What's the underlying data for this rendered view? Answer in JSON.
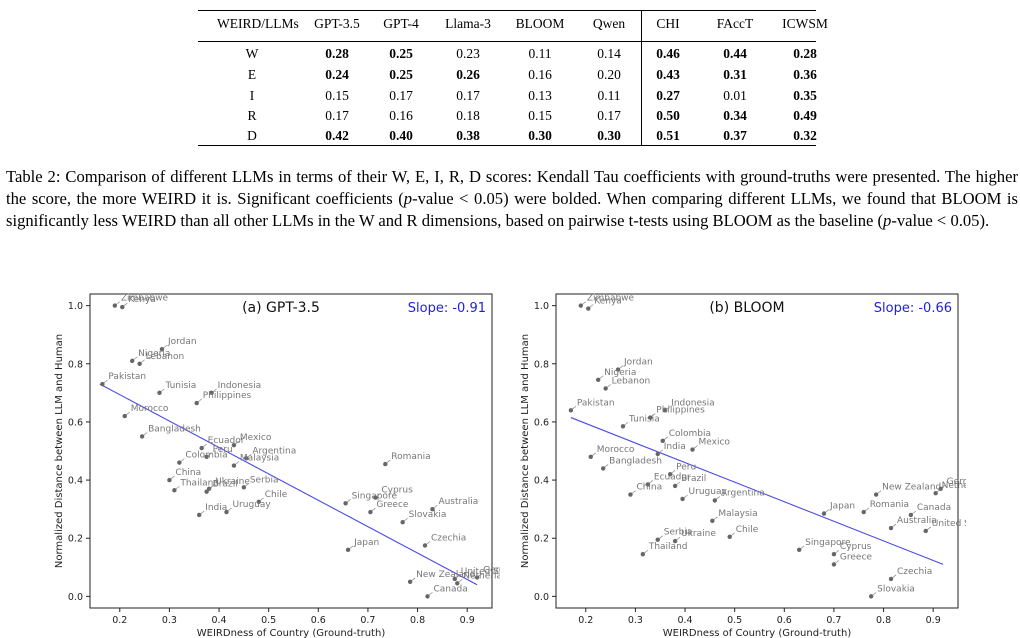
{
  "table": {
    "header": [
      "WEIRD/LLMs",
      "GPT-3.5",
      "GPT-4",
      "Llama-3",
      "BLOOM",
      "Qwen",
      "CHI",
      "FAccT",
      "ICWSM"
    ],
    "rows": [
      {
        "label": "W",
        "values": [
          "0.28",
          "0.25",
          "0.23",
          "0.11",
          "0.14",
          "0.46",
          "0.44",
          "0.28"
        ],
        "bold": [
          true,
          true,
          false,
          false,
          false,
          true,
          true,
          true
        ]
      },
      {
        "label": "E",
        "values": [
          "0.24",
          "0.25",
          "0.26",
          "0.16",
          "0.20",
          "0.43",
          "0.31",
          "0.36"
        ],
        "bold": [
          true,
          true,
          true,
          false,
          false,
          true,
          true,
          true
        ]
      },
      {
        "label": "I",
        "values": [
          "0.15",
          "0.17",
          "0.17",
          "0.13",
          "0.11",
          "0.27",
          "0.01",
          "0.35"
        ],
        "bold": [
          false,
          false,
          false,
          false,
          false,
          true,
          false,
          true
        ]
      },
      {
        "label": "R",
        "values": [
          "0.17",
          "0.16",
          "0.18",
          "0.15",
          "0.17",
          "0.50",
          "0.34",
          "0.49"
        ],
        "bold": [
          false,
          false,
          false,
          false,
          false,
          true,
          true,
          true
        ]
      },
      {
        "label": "D",
        "values": [
          "0.42",
          "0.40",
          "0.38",
          "0.30",
          "0.30",
          "0.51",
          "0.37",
          "0.32"
        ],
        "bold": [
          true,
          true,
          true,
          true,
          true,
          true,
          true,
          true
        ]
      }
    ]
  },
  "caption": {
    "label": "Table 2:",
    "text1": " Comparison of different LLMs in terms of their W, E, I, R, D scores: Kendall Tau coefficients with ground-truths were presented. The higher the score, the more WEIRD it is. Significant coefficients (",
    "p1": "p",
    "text2": "-value < 0.05) were bolded. When comparing different LLMs, we found that BLOOM is significantly less WEIRD than all other LLMs in the W and R dimensions, based on pairwise t-tests using BLOOM as the baseline (",
    "p2": "p",
    "text3": "-value < 0.05)."
  },
  "chart_data": [
    {
      "type": "scatter",
      "title": "(a) GPT-3.5",
      "annotation": "Slope: -0.91",
      "xlabel": "WEIRDness of Country (Ground-truth)",
      "ylabel": "Normalized Distance between LLM and Human",
      "xlim": [
        0.14,
        0.95
      ],
      "ylim": [
        -0.04,
        1.04
      ],
      "xticks": [
        "0.2",
        "0.3",
        "0.4",
        "0.5",
        "0.6",
        "0.7",
        "0.8",
        "0.9"
      ],
      "yticks": [
        "0.0",
        "0.2",
        "0.4",
        "0.6",
        "0.8",
        "1.0"
      ],
      "regression": {
        "x": [
          0.16,
          0.92
        ],
        "y": [
          0.73,
          0.04
        ]
      },
      "points": [
        {
          "name": "Zimbabwe",
          "x": 0.19,
          "y": 1.0
        },
        {
          "name": "Kenya",
          "x": 0.205,
          "y": 0.995
        },
        {
          "name": "Jordan",
          "x": 0.285,
          "y": 0.85
        },
        {
          "name": "Nigeria",
          "x": 0.225,
          "y": 0.81
        },
        {
          "name": "Lebanon",
          "x": 0.24,
          "y": 0.8
        },
        {
          "name": "Pakistan",
          "x": 0.165,
          "y": 0.73
        },
        {
          "name": "Tunisia",
          "x": 0.28,
          "y": 0.7
        },
        {
          "name": "Indonesia",
          "x": 0.385,
          "y": 0.7
        },
        {
          "name": "Philippines",
          "x": 0.355,
          "y": 0.665
        },
        {
          "name": "Morocco",
          "x": 0.21,
          "y": 0.62
        },
        {
          "name": "Bangladesh",
          "x": 0.245,
          "y": 0.55
        },
        {
          "name": "Ecuador",
          "x": 0.365,
          "y": 0.51
        },
        {
          "name": "Mexico",
          "x": 0.43,
          "y": 0.52
        },
        {
          "name": "Peru",
          "x": 0.375,
          "y": 0.48
        },
        {
          "name": "Argentina",
          "x": 0.455,
          "y": 0.475
        },
        {
          "name": "Colombia",
          "x": 0.32,
          "y": 0.46
        },
        {
          "name": "Malaysia",
          "x": 0.43,
          "y": 0.45
        },
        {
          "name": "China",
          "x": 0.3,
          "y": 0.4
        },
        {
          "name": "Romania",
          "x": 0.735,
          "y": 0.455
        },
        {
          "name": "Ukraine",
          "x": 0.38,
          "y": 0.37
        },
        {
          "name": "Serbia",
          "x": 0.45,
          "y": 0.375
        },
        {
          "name": "Thailand",
          "x": 0.31,
          "y": 0.365
        },
        {
          "name": "Brazil",
          "x": 0.375,
          "y": 0.36
        },
        {
          "name": "Chile",
          "x": 0.48,
          "y": 0.325
        },
        {
          "name": "Singapore",
          "x": 0.655,
          "y": 0.32
        },
        {
          "name": "Cyprus",
          "x": 0.715,
          "y": 0.34
        },
        {
          "name": "Australia",
          "x": 0.83,
          "y": 0.3
        },
        {
          "name": "Greece",
          "x": 0.705,
          "y": 0.29
        },
        {
          "name": "Slovakia",
          "x": 0.77,
          "y": 0.255
        },
        {
          "name": "India",
          "x": 0.36,
          "y": 0.28
        },
        {
          "name": "Uruguay",
          "x": 0.415,
          "y": 0.29
        },
        {
          "name": "Czechia",
          "x": 0.815,
          "y": 0.175
        },
        {
          "name": "Japan",
          "x": 0.66,
          "y": 0.16
        },
        {
          "name": "Germany",
          "x": 0.92,
          "y": 0.065
        },
        {
          "name": "United States",
          "x": 0.875,
          "y": 0.06
        },
        {
          "name": "Netherlands",
          "x": 0.88,
          "y": 0.045
        },
        {
          "name": "New Zealand",
          "x": 0.785,
          "y": 0.05
        },
        {
          "name": "Canada",
          "x": 0.82,
          "y": 0.0
        }
      ]
    },
    {
      "type": "scatter",
      "title": "(b) BLOOM",
      "annotation": "Slope: -0.66",
      "xlabel": "WEIRDness of Country (Ground-truth)",
      "ylabel": "Normalized Distance between LLM and Human",
      "xlim": [
        0.14,
        0.95
      ],
      "ylim": [
        -0.04,
        1.04
      ],
      "xticks": [
        "0.2",
        "0.3",
        "0.4",
        "0.5",
        "0.6",
        "0.7",
        "0.8",
        "0.9"
      ],
      "yticks": [
        "0.0",
        "0.2",
        "0.4",
        "0.6",
        "0.8",
        "1.0"
      ],
      "regression": {
        "x": [
          0.17,
          0.92
        ],
        "y": [
          0.615,
          0.11
        ]
      },
      "points": [
        {
          "name": "Zimbabwe",
          "x": 0.19,
          "y": 1.0
        },
        {
          "name": "Kenya",
          "x": 0.205,
          "y": 0.99
        },
        {
          "name": "Jordan",
          "x": 0.265,
          "y": 0.78
        },
        {
          "name": "Nigeria",
          "x": 0.225,
          "y": 0.745
        },
        {
          "name": "Lebanon",
          "x": 0.24,
          "y": 0.715
        },
        {
          "name": "Pakistan",
          "x": 0.17,
          "y": 0.64
        },
        {
          "name": "Indonesia",
          "x": 0.36,
          "y": 0.64
        },
        {
          "name": "Tunisia",
          "x": 0.275,
          "y": 0.585
        },
        {
          "name": "Philippines",
          "x": 0.33,
          "y": 0.615
        },
        {
          "name": "Colombia",
          "x": 0.355,
          "y": 0.535
        },
        {
          "name": "Mexico",
          "x": 0.415,
          "y": 0.505
        },
        {
          "name": "India",
          "x": 0.345,
          "y": 0.49
        },
        {
          "name": "Morocco",
          "x": 0.21,
          "y": 0.48
        },
        {
          "name": "Bangladesh",
          "x": 0.235,
          "y": 0.44
        },
        {
          "name": "Peru",
          "x": 0.37,
          "y": 0.42
        },
        {
          "name": "Ecuador",
          "x": 0.325,
          "y": 0.385
        },
        {
          "name": "Brazil",
          "x": 0.38,
          "y": 0.38
        },
        {
          "name": "China",
          "x": 0.29,
          "y": 0.35
        },
        {
          "name": "Uruguay",
          "x": 0.395,
          "y": 0.335
        },
        {
          "name": "Argentina",
          "x": 0.46,
          "y": 0.33
        },
        {
          "name": "New Zealand",
          "x": 0.785,
          "y": 0.35
        },
        {
          "name": "Germany",
          "x": 0.915,
          "y": 0.37
        },
        {
          "name": "Netherlands",
          "x": 0.905,
          "y": 0.355
        },
        {
          "name": "Romania",
          "x": 0.76,
          "y": 0.29
        },
        {
          "name": "Japan",
          "x": 0.68,
          "y": 0.285
        },
        {
          "name": "Canada",
          "x": 0.855,
          "y": 0.28
        },
        {
          "name": "Malaysia",
          "x": 0.455,
          "y": 0.26
        },
        {
          "name": "Australia",
          "x": 0.815,
          "y": 0.235
        },
        {
          "name": "United States",
          "x": 0.885,
          "y": 0.225
        },
        {
          "name": "Chile",
          "x": 0.49,
          "y": 0.205
        },
        {
          "name": "Serbia",
          "x": 0.345,
          "y": 0.195
        },
        {
          "name": "Ukraine",
          "x": 0.38,
          "y": 0.19
        },
        {
          "name": "Singapore",
          "x": 0.63,
          "y": 0.16
        },
        {
          "name": "Thailand",
          "x": 0.315,
          "y": 0.145
        },
        {
          "name": "Cyprus",
          "x": 0.7,
          "y": 0.145
        },
        {
          "name": "Greece",
          "x": 0.7,
          "y": 0.11
        },
        {
          "name": "Czechia",
          "x": 0.815,
          "y": 0.06
        },
        {
          "name": "Slovakia",
          "x": 0.775,
          "y": 0.0
        }
      ]
    }
  ]
}
